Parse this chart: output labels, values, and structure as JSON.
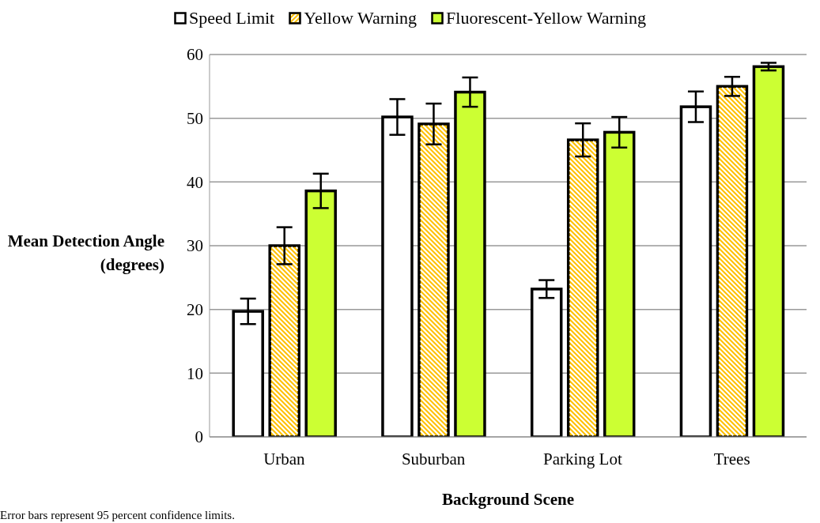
{
  "chart_data": {
    "type": "bar",
    "xlabel": "Background Scene",
    "ylabel": "Mean Detection Angle (degrees)",
    "categories": [
      "Urban",
      "Suburban",
      "Parking Lot",
      "Trees"
    ],
    "series": [
      {
        "name": "Speed Limit",
        "color": "#ffffff",
        "values": [
          19.7,
          50.2,
          23.2,
          51.8
        ],
        "errors": [
          2.0,
          2.8,
          1.4,
          2.4
        ]
      },
      {
        "name": "Yellow Warning",
        "color": "#ffc000",
        "values": [
          30.0,
          49.1,
          46.6,
          55.0
        ],
        "errors": [
          2.9,
          3.2,
          2.6,
          1.5
        ]
      },
      {
        "name": "Fluorescent-Yellow Warning",
        "color": "#ccff33",
        "values": [
          38.6,
          54.1,
          47.8,
          58.1
        ],
        "errors": [
          2.7,
          2.3,
          2.4,
          0.6
        ]
      }
    ],
    "ylim": [
      0,
      60
    ],
    "yticks": [
      0,
      10,
      20,
      30,
      40,
      50,
      60
    ],
    "grid": "y",
    "legend": "top",
    "annotations": [
      "Error bars represent 95 percent confidence limits."
    ]
  }
}
